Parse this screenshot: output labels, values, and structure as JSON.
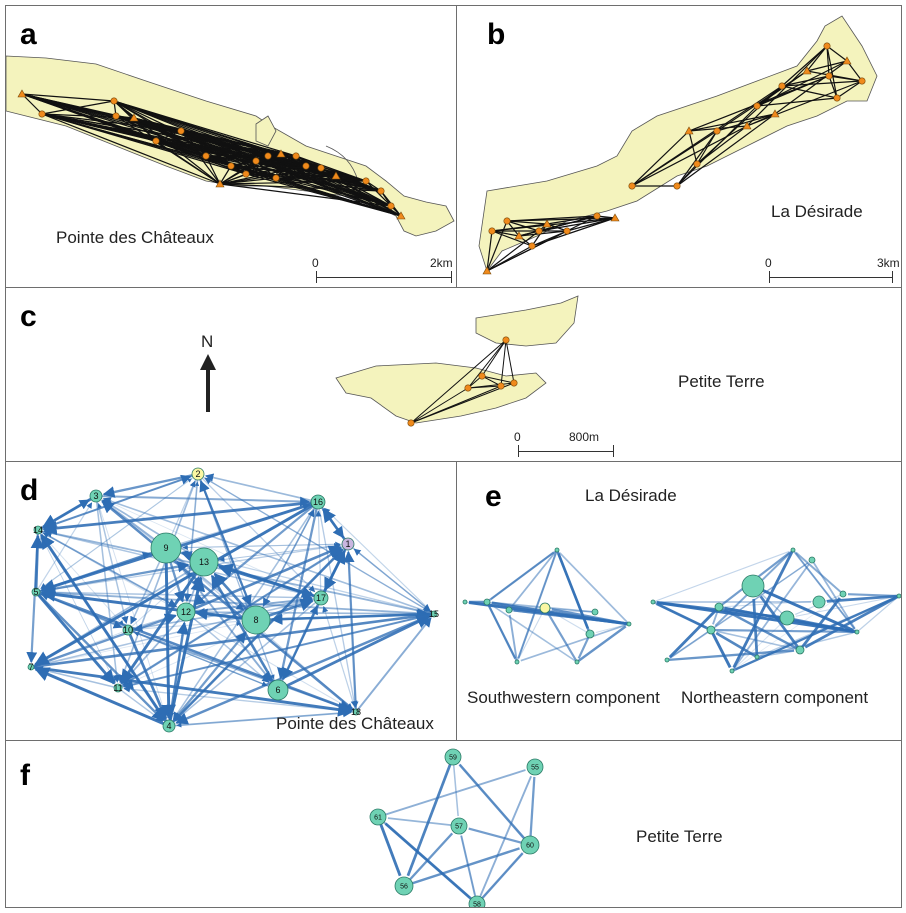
{
  "panels": {
    "a": {
      "label": "a",
      "place": "Pointe des Châteaux",
      "scale_start": "0",
      "scale_end": "2km"
    },
    "b": {
      "label": "b",
      "place": "La Désirade",
      "scale_start": "0",
      "scale_end": "3km"
    },
    "c": {
      "label": "c",
      "place": "Petite Terre",
      "north": "N",
      "scale_start": "0",
      "scale_end": "800m"
    },
    "d": {
      "label": "d",
      "place": "Pointe des Châteaux",
      "nodes": [
        "1",
        "2",
        "3",
        "4",
        "5",
        "6",
        "7",
        "8",
        "9",
        "10",
        "11",
        "12",
        "13",
        "14",
        "15",
        "16",
        "17",
        "18"
      ]
    },
    "e": {
      "label": "e",
      "place": "La Désirade",
      "sw_caption": "Southwestern component",
      "ne_caption": "Northeastern component"
    },
    "f": {
      "label": "f",
      "place": "Petite Terre",
      "nodes": [
        "55",
        "56",
        "57",
        "58",
        "59",
        "60",
        "61"
      ]
    }
  },
  "colors": {
    "land": "#f4f3bd",
    "map_edge": "#1a1a1a",
    "site_node": "#f08a1c",
    "net_node": "#6fd2b4",
    "highlight_yellow": "#fbf7a2",
    "highlight_purple": "#c9b6e0",
    "edge_blue": "#2e6db4"
  }
}
